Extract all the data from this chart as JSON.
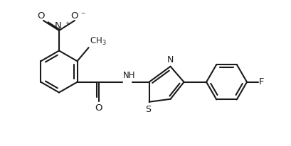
{
  "background": "#ffffff",
  "line_color": "#1a1a1a",
  "line_width": 1.5,
  "fig_width": 4.09,
  "fig_height": 2.06,
  "dpi": 100,
  "xlim": [
    0,
    4.09
  ],
  "ylim": [
    0,
    2.06
  ]
}
